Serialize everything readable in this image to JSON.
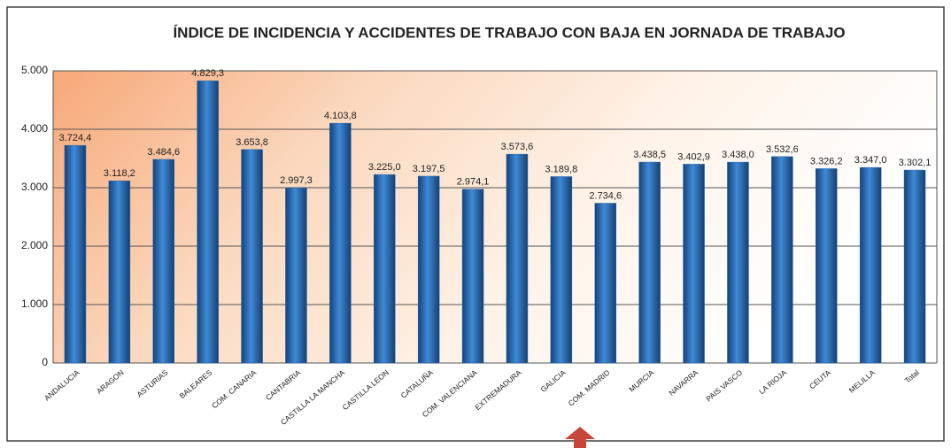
{
  "chart_data": {
    "type": "bar",
    "title": "ÍNDICE DE INCIDENCIA Y ACCIDENTES DE TRABAJO CON BAJA EN JORNADA DE TRABAJO",
    "categories": [
      "ANDALUCIA",
      "ARAGON",
      "ASTURIAS",
      "BALEARES",
      "COM. CANARIA",
      "CANTABRIA",
      "CASTILLA LA MANCHA",
      "CASTILLA LEON",
      "CATALUÑA",
      "COM. VALENCIANA",
      "EXTREMADURA",
      "GALICIA",
      "COM. MADRID",
      "MURCIA",
      "NAVARRA",
      "PAIS VASCO",
      "LA RIOJA",
      "CEUTA",
      "MELILLA",
      "Total"
    ],
    "values": [
      3724.4,
      3118.2,
      3484.6,
      4829.3,
      3653.8,
      2997.3,
      4103.8,
      3225.0,
      3197.5,
      2974.1,
      3573.6,
      3189.8,
      2734.6,
      3438.5,
      3402.9,
      3438.0,
      3532.6,
      3326.2,
      3347.0,
      3302.1
    ],
    "value_labels": [
      "3.724,4",
      "3.118,2",
      "3.484,6",
      "4.829,3",
      "3.653,8",
      "2.997,3",
      "4.103,8",
      "3.225,0",
      "3.197,5",
      "2.974,1",
      "3.573,6",
      "3.189,8",
      "2.734,6",
      "3.438,5",
      "3.402,9",
      "3.438,0",
      "3.532,6",
      "3.326,2",
      "3.347,0",
      "3.302,1"
    ],
    "color": "#2a6bb0",
    "ylim": [
      0,
      5000
    ],
    "yticks": [
      0,
      {
        "value": 1000,
        "label": "1.000"
      },
      {
        "value": 2000,
        "label": "2.000"
      },
      {
        "value": 3000,
        "label": "3.000"
      },
      {
        "value": 4000,
        "label": "4.000"
      },
      {
        "value": 5000,
        "label": "5.000"
      }
    ],
    "grid": true
  }
}
